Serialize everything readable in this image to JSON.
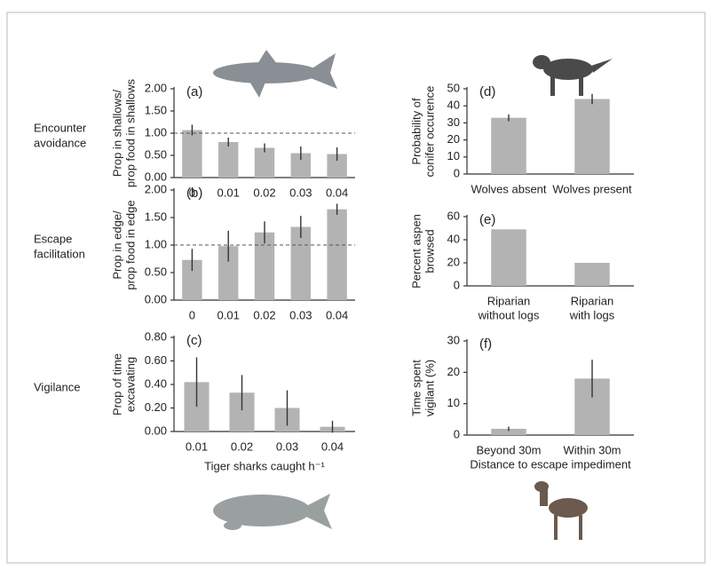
{
  "row_labels": [
    [
      "Encounter",
      "avoidance"
    ],
    [
      "Escape",
      "facilitation"
    ],
    [
      "Vigilance"
    ]
  ],
  "chart_data": [
    {
      "type": "bar",
      "panel_label": "(a)",
      "ylabel": [
        "Prop in shallows/",
        "prop food in shallows"
      ],
      "categories": [
        "0",
        "0.01",
        "0.02",
        "0.03",
        "0.04"
      ],
      "values": [
        1.07,
        0.8,
        0.67,
        0.55,
        0.53
      ],
      "errors": [
        0.12,
        0.1,
        0.1,
        0.15,
        0.15
      ],
      "color": "#b3b3b3",
      "reference_line": 1,
      "ylim": [
        0,
        2
      ],
      "yticks": [
        {
          "value": 0,
          "label": "0.00"
        },
        {
          "value": 0.5,
          "label": "0.50"
        },
        {
          "value": 1,
          "label": "1.00"
        },
        {
          "value": 1.5,
          "label": "1.50"
        },
        {
          "value": 2,
          "label": "2.00"
        }
      ]
    },
    {
      "type": "bar",
      "panel_label": "(b)",
      "ylabel": [
        "Prop in edge/",
        "prop food in edge"
      ],
      "categories": [
        "0",
        "0.01",
        "0.02",
        "0.03",
        "0.04"
      ],
      "values": [
        0.73,
        0.98,
        1.23,
        1.33,
        1.65
      ],
      "errors": [
        0.2,
        0.28,
        0.2,
        0.2,
        0.1
      ],
      "color": "#b3b3b3",
      "reference_line": 1,
      "ylim": [
        0,
        2
      ],
      "yticks": [
        {
          "value": 0,
          "label": "0.00"
        },
        {
          "value": 0.5,
          "label": "0.50"
        },
        {
          "value": 1,
          "label": "1.00"
        },
        {
          "value": 1.5,
          "label": "1.50"
        },
        {
          "value": 2,
          "label": "2.00"
        }
      ]
    },
    {
      "type": "bar",
      "panel_label": "(c)",
      "ylabel": [
        "Prop of time",
        "excavating"
      ],
      "xlabel": "Tiger sharks caught h⁻¹",
      "categories": [
        "0.01",
        "0.02",
        "0.03",
        "0.04"
      ],
      "values": [
        0.42,
        0.33,
        0.2,
        0.04
      ],
      "errors": [
        0.21,
        0.15,
        0.15,
        0.05
      ],
      "color": "#b3b3b3",
      "ylim": [
        0,
        0.8
      ],
      "yticks": [
        {
          "value": 0,
          "label": "0.00"
        },
        {
          "value": 0.2,
          "label": "0.20"
        },
        {
          "value": 0.4,
          "label": "0.40"
        },
        {
          "value": 0.6,
          "label": "0.60"
        },
        {
          "value": 0.8,
          "label": "0.80"
        }
      ]
    },
    {
      "type": "bar",
      "panel_label": "(d)",
      "ylabel": [
        "Probability of",
        "conifer occurence"
      ],
      "categories": [
        "Wolves absent",
        "Wolves present"
      ],
      "values": [
        33,
        44
      ],
      "errors": [
        2,
        3
      ],
      "color": "#b3b3b3",
      "ylim": [
        0,
        50
      ],
      "yticks": [
        0,
        10,
        20,
        30,
        40,
        50
      ]
    },
    {
      "type": "bar",
      "panel_label": "(e)",
      "ylabel": [
        "Percent aspen",
        "browsed"
      ],
      "categories": [
        [
          "Riparian",
          "without logs"
        ],
        [
          "Riparian",
          "with logs"
        ]
      ],
      "values": [
        49,
        20
      ],
      "color": "#b3b3b3",
      "ylim": [
        0,
        60
      ],
      "yticks": [
        0,
        20,
        40,
        60
      ]
    },
    {
      "type": "bar",
      "panel_label": "(f)",
      "ylabel": [
        "Time spent",
        "vigilant (%)"
      ],
      "xlabel": "Distance to escape impediment",
      "categories": [
        "Beyond 30m",
        "Within 30m"
      ],
      "values": [
        2,
        18
      ],
      "errors": [
        0.7,
        6
      ],
      "color": "#b3b3b3",
      "ylim": [
        0,
        30
      ],
      "yticks": [
        0,
        10,
        20,
        30
      ]
    }
  ]
}
